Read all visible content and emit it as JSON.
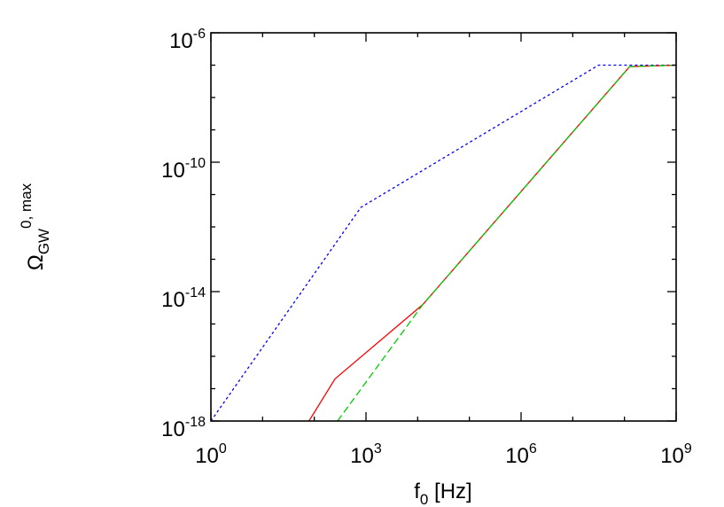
{
  "chart_data": {
    "type": "line",
    "xlabel": {
      "base": "f",
      "subscript": "0",
      "unit": " [Hz]"
    },
    "ylabel": {
      "base": "Ω",
      "subscript": "GW",
      "superscript": "0, max"
    },
    "x_scale": "log",
    "y_scale": "log",
    "xlim": [
      1,
      1000000000
    ],
    "ylim": [
      1e-18,
      1e-06
    ],
    "x_ticks": [
      {
        "value": 1,
        "base": "10",
        "exp": "0"
      },
      {
        "value": 1000,
        "base": "10",
        "exp": "3"
      },
      {
        "value": 1000000,
        "base": "10",
        "exp": "6"
      },
      {
        "value": 1000000000,
        "base": "10",
        "exp": "9"
      }
    ],
    "y_ticks": [
      {
        "value": 1e-18,
        "base": "10",
        "exp": "-18"
      },
      {
        "value": 1e-14,
        "base": "10",
        "exp": "-14"
      },
      {
        "value": 1e-10,
        "base": "10",
        "exp": "-10"
      },
      {
        "value": 1e-06,
        "base": "10",
        "exp": "-6"
      }
    ],
    "grid": false,
    "legend": "none",
    "series": [
      {
        "color": "#0000ff",
        "dash": "dotted",
        "x": [
          1,
          794,
          31600000,
          1000000000
        ],
        "y": [
          1e-18,
          4e-12,
          1e-07,
          1e-07
        ]
      },
      {
        "color": "#ff0000",
        "dash": "solid",
        "x": [
          79,
          251,
          12600,
          126000000,
          1000000000
        ],
        "y": [
          1e-18,
          2e-17,
          4e-15,
          9e-08,
          1e-07
        ]
      },
      {
        "color": "#00cc00",
        "dash": "dashed",
        "x": [
          282,
          12600,
          126000000,
          1000000000
        ],
        "y": [
          1e-18,
          4e-15,
          9e-08,
          1e-07
        ]
      }
    ]
  }
}
